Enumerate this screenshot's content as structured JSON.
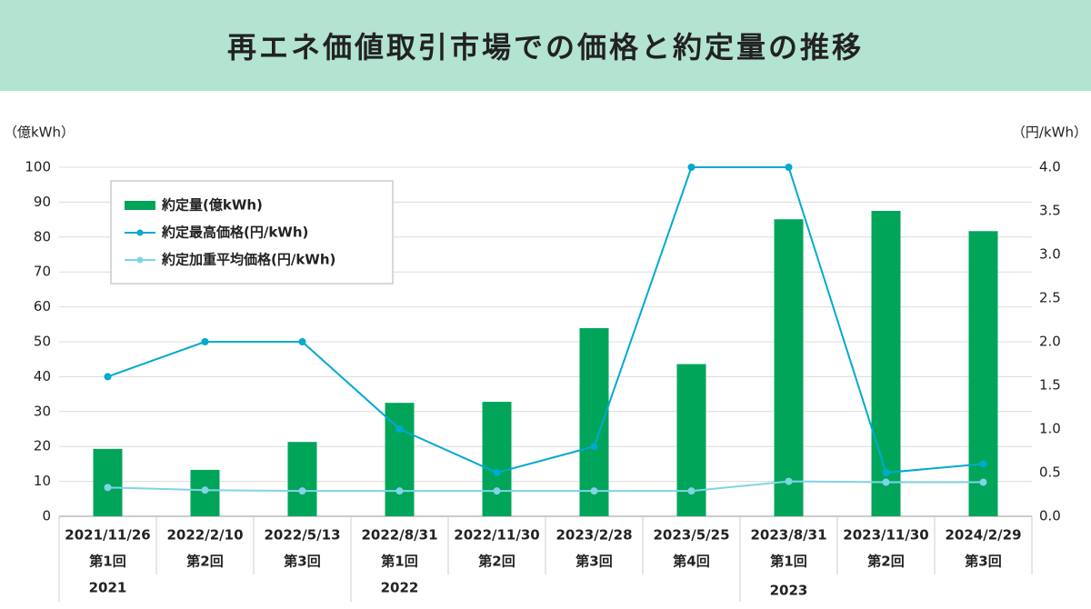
{
  "chart_data": {
    "type": "bar-line",
    "title": "再エネ価値取引市場での価格と約定量の推移",
    "y_label": "（億kWh）",
    "y2_label": "（円/kWh）",
    "categories": [
      "2021/11/26",
      "2022/2/10",
      "2022/5/13",
      "2022/8/31",
      "2022/11/30",
      "2023/2/28",
      "2023/5/25",
      "2023/8/31",
      "2023/11/30",
      "2024/2/29"
    ],
    "rounds": [
      "第1回",
      "第2回",
      "第3回",
      "第1回",
      "第2回",
      "第3回",
      "第4回",
      "第1回",
      "第2回",
      "第3回"
    ],
    "years": [
      "2021",
      null,
      null,
      "2022",
      null,
      null,
      null,
      "2023",
      null,
      null
    ],
    "series": [
      {
        "name": "約定量(億kWh)",
        "type": "bar",
        "color": "#00a55a",
        "values": [
          19.3,
          13.3,
          21.3,
          32.5,
          32.8,
          53.9,
          43.6,
          85.1,
          87.5,
          81.7
        ]
      },
      {
        "name": "約定最高価格(円/kWh)",
        "type": "line",
        "axis": "y2",
        "color": "#00a9d0",
        "values": [
          1.6,
          2.0,
          2.0,
          1.0,
          0.5,
          0.8,
          4.0,
          4.0,
          0.5,
          0.6
        ]
      },
      {
        "name": "約定加重平均価格(円/kWh)",
        "type": "line",
        "axis": "y2",
        "color": "#7fd4e8",
        "values": [
          0.33,
          0.3,
          0.29,
          0.29,
          0.29,
          0.29,
          0.29,
          0.4,
          0.39,
          0.39
        ]
      }
    ],
    "ylim": [
      0,
      100
    ],
    "yticks": [
      0,
      10,
      20,
      30,
      40,
      50,
      60,
      70,
      80,
      90,
      100
    ],
    "y2lim": [
      0,
      4
    ],
    "y2ticks": [
      {
        "value": 0,
        "label": "0.0"
      },
      0.5,
      {
        "value": 1,
        "label": "1.0"
      },
      1.5,
      {
        "value": 2,
        "label": "2.0"
      },
      2.5,
      {
        "value": 3,
        "label": "3.0"
      },
      3.5,
      {
        "value": 4,
        "label": "4.0"
      }
    ],
    "grid": true,
    "legend": "upper left"
  }
}
